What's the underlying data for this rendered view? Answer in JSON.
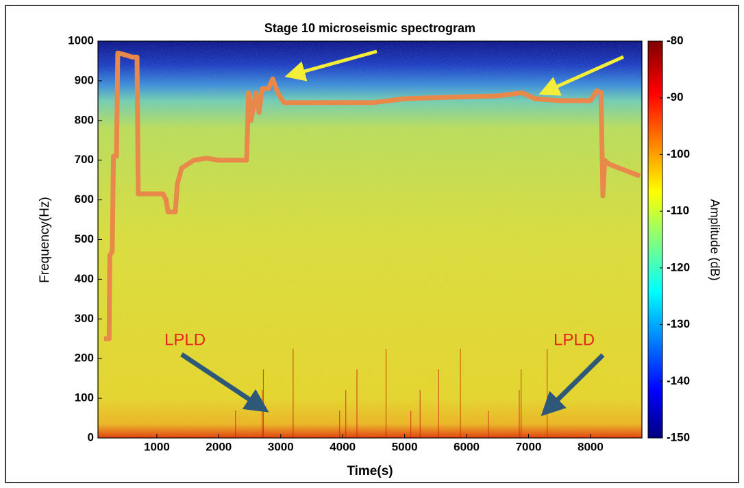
{
  "chart_data": {
    "type": "spectrogram",
    "title": "Stage 10 microseismic spectrogram",
    "x_label": "Time(s)",
    "y_label": "Frequency(Hz)",
    "colorbar_label": "Amplitude (dB)",
    "xlim": [
      50,
      8830
    ],
    "xticks": [
      1000,
      2000,
      3000,
      4000,
      5000,
      6000,
      7000,
      8000
    ],
    "ylim": [
      0,
      1000
    ],
    "yticks": [
      0,
      100,
      200,
      300,
      400,
      500,
      600,
      700,
      800,
      900,
      1000
    ],
    "clim": [
      -150,
      -80
    ],
    "cticks": [
      -80,
      -90,
      -100,
      -110,
      -120,
      -130,
      -140,
      -150
    ],
    "series": [
      {
        "color": "#e8884a",
        "x": [
          150,
          230,
          240,
          280,
          300,
          350,
          370,
          500,
          600,
          680,
          700,
          1100,
          1150,
          1180,
          1300,
          1330,
          1400,
          1600,
          1800,
          2000,
          2300,
          2450,
          2480,
          2520,
          2600,
          2650,
          2700,
          2800,
          2870,
          2950,
          3050,
          4500,
          5000,
          6000,
          6500,
          6900,
          7100,
          7500,
          8000,
          8100,
          8170,
          8200,
          8230,
          8300,
          8800
        ],
        "values": [
          250,
          250,
          460,
          470,
          710,
          710,
          970,
          965,
          960,
          960,
          615,
          615,
          600,
          570,
          570,
          640,
          680,
          700,
          705,
          700,
          700,
          700,
          870,
          800,
          870,
          820,
          880,
          880,
          905,
          870,
          845,
          845,
          855,
          860,
          862,
          870,
          855,
          850,
          850,
          875,
          870,
          610,
          700,
          690,
          660
        ]
      }
    ],
    "annotations": [
      "LPLD",
      "LPLD"
    ]
  }
}
